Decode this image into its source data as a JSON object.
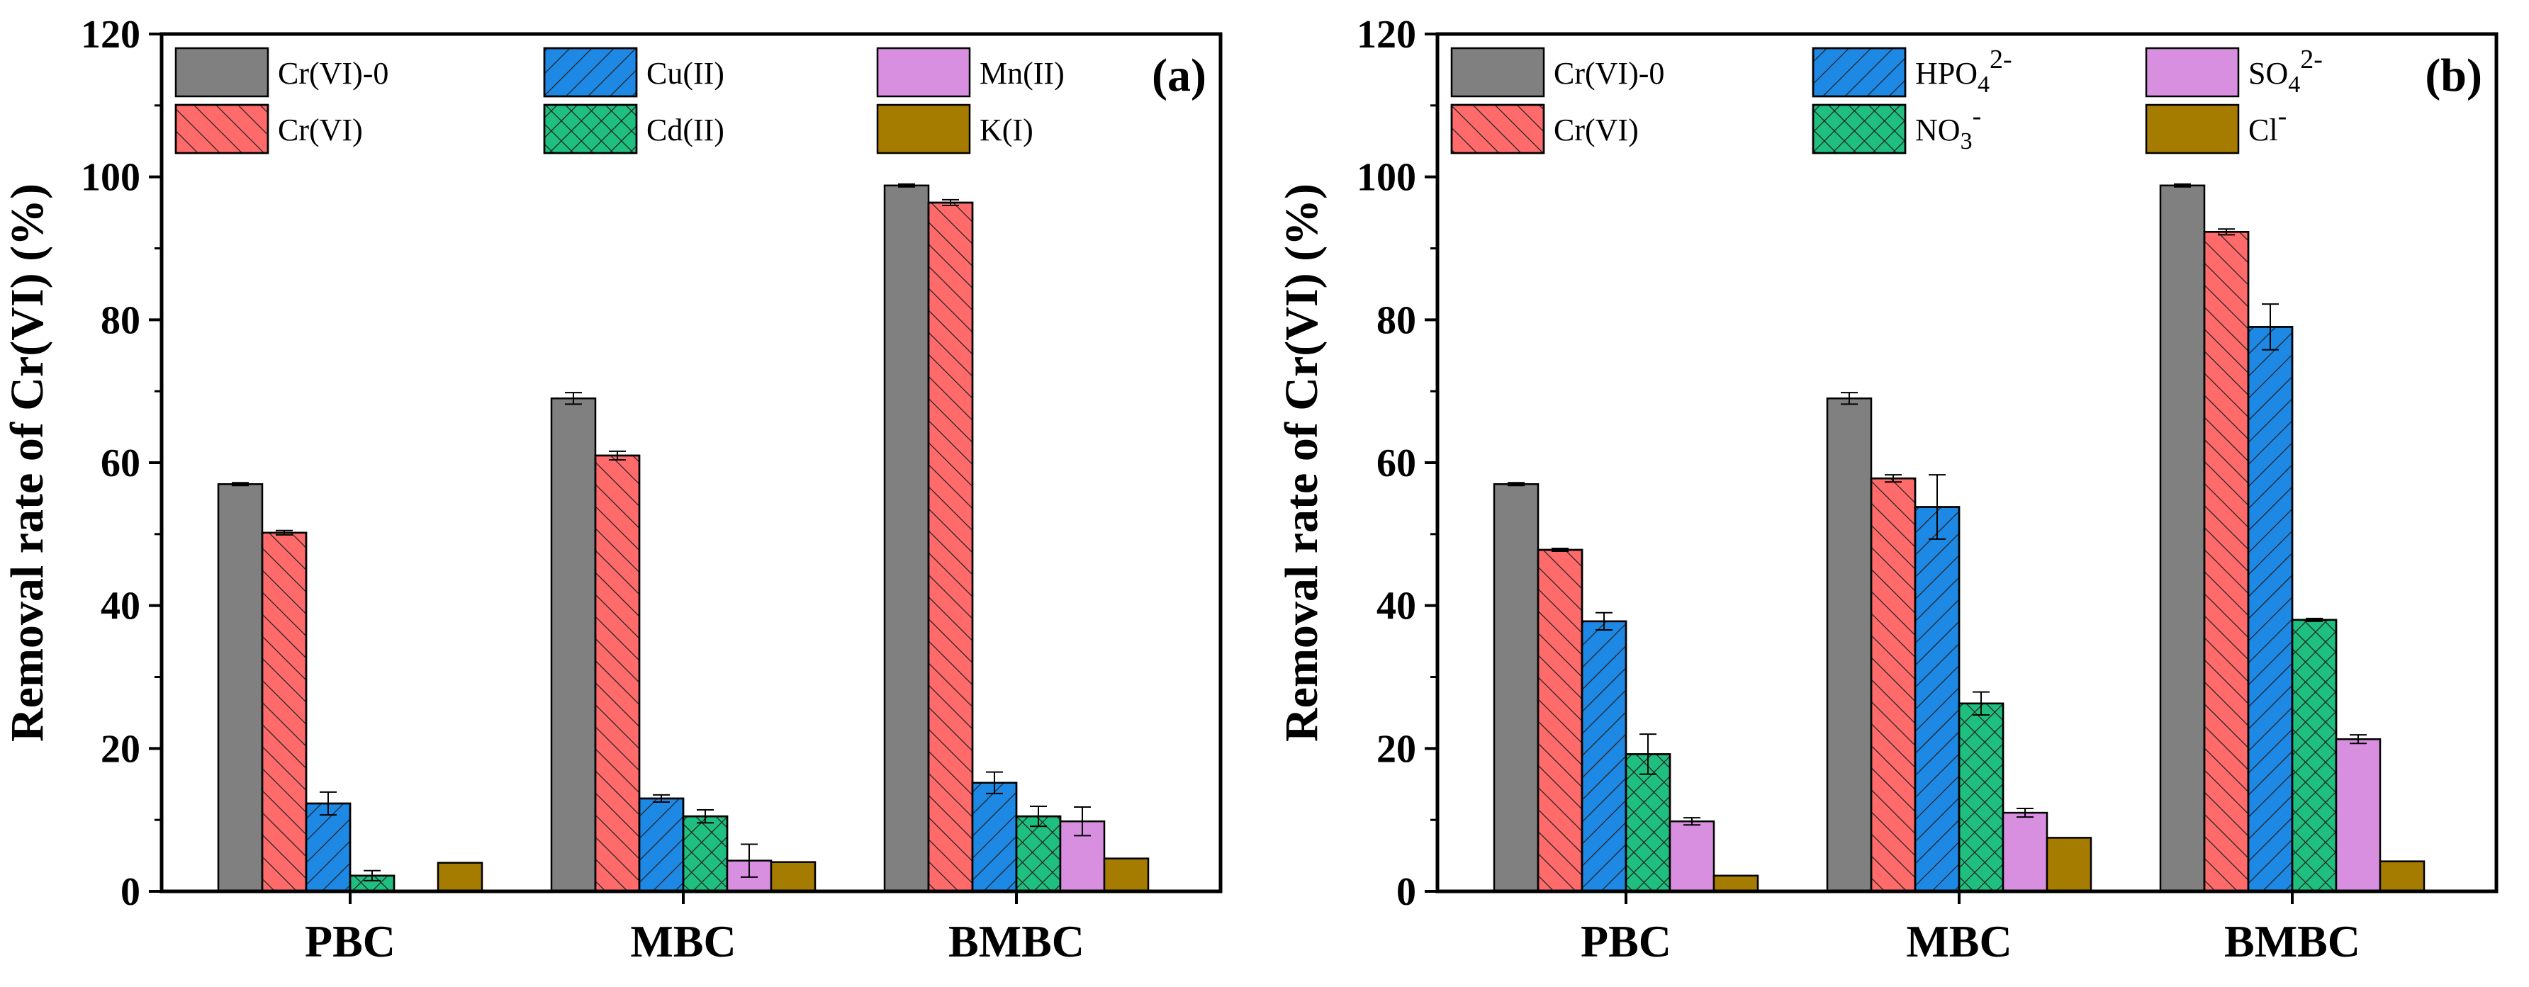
{
  "chart_data": [
    {
      "type": "bar",
      "panel_label": "(a)",
      "ylabel": "Removal rate of Cr(VI) (%)",
      "ylim": [
        0,
        120
      ],
      "yticks": [
        0,
        20,
        40,
        60,
        80,
        100,
        120
      ],
      "categories": [
        "PBC",
        "MBC",
        "BMBC"
      ],
      "legend_placement": "top, three columns",
      "series": [
        {
          "name": "Cr(VI)-0",
          "color": "#808080",
          "pattern": "solid",
          "values": [
            57.0,
            69.0,
            98.8
          ],
          "errors": [
            0.2,
            0.8,
            0.2
          ]
        },
        {
          "name": "Cr(VI)",
          "color": "#ff6b6b",
          "pattern": "hatch-right",
          "values": [
            50.2,
            61.0,
            96.4
          ],
          "errors": [
            0.3,
            0.6,
            0.4
          ]
        },
        {
          "name": "Cu(II)",
          "color": "#1e88e5",
          "pattern": "hatch-left",
          "values": [
            12.3,
            13.0,
            15.2
          ],
          "errors": [
            1.6,
            0.5,
            1.5
          ]
        },
        {
          "name": "Cd(II)",
          "color": "#1fbf7f",
          "pattern": "crosshatch",
          "values": [
            2.2,
            10.5,
            10.5
          ],
          "errors": [
            0.7,
            0.9,
            1.4
          ]
        },
        {
          "name": "Mn(II)",
          "color": "#d88fe0",
          "pattern": "solid",
          "values": [
            0,
            4.3,
            9.8
          ],
          "errors": [
            0,
            2.3,
            2.0
          ]
        },
        {
          "name": "K(I)",
          "color": "#a67c00",
          "pattern": "solid",
          "values": [
            4.0,
            4.1,
            4.6
          ],
          "errors": [
            0,
            0,
            0
          ]
        }
      ]
    },
    {
      "type": "bar",
      "panel_label": "(b)",
      "ylabel": "Removal rate of Cr(VI) (%)",
      "ylim": [
        0,
        120
      ],
      "yticks": [
        0,
        20,
        40,
        60,
        80,
        100,
        120
      ],
      "categories": [
        "PBC",
        "MBC",
        "BMBC"
      ],
      "legend_placement": "top, three columns",
      "series": [
        {
          "name": "Cr(VI)-0",
          "color": "#808080",
          "pattern": "solid",
          "values": [
            57.0,
            69.0,
            98.8
          ],
          "errors": [
            0.2,
            0.8,
            0.2
          ]
        },
        {
          "name": "Cr(VI)",
          "color": "#ff6b6b",
          "pattern": "hatch-right",
          "values": [
            47.8,
            57.8,
            92.3
          ],
          "errors": [
            0.2,
            0.5,
            0.4
          ]
        },
        {
          "name": "HPO4",
          "sup": "2-",
          "sub": "4",
          "base": "HPO",
          "color": "#1e88e5",
          "pattern": "hatch-left",
          "values": [
            37.8,
            53.8,
            79.0
          ],
          "errors": [
            1.2,
            4.5,
            3.2
          ]
        },
        {
          "name": "NO3",
          "sup": "-",
          "sub": "3",
          "base": "NO",
          "color": "#1fbf7f",
          "pattern": "crosshatch",
          "values": [
            19.2,
            26.3,
            38.0
          ],
          "errors": [
            2.8,
            1.6,
            0.2
          ]
        },
        {
          "name": "SO4",
          "sup": "2-",
          "sub": "4",
          "base": "SO",
          "color": "#d88fe0",
          "pattern": "solid",
          "values": [
            9.8,
            11.0,
            21.3
          ],
          "errors": [
            0.5,
            0.6,
            0.6
          ]
        },
        {
          "name": "Cl",
          "sup": "-",
          "sub": "",
          "base": "Cl",
          "color": "#a67c00",
          "pattern": "solid",
          "values": [
            2.2,
            7.5,
            4.2
          ],
          "errors": [
            0,
            0,
            0
          ]
        }
      ]
    }
  ]
}
